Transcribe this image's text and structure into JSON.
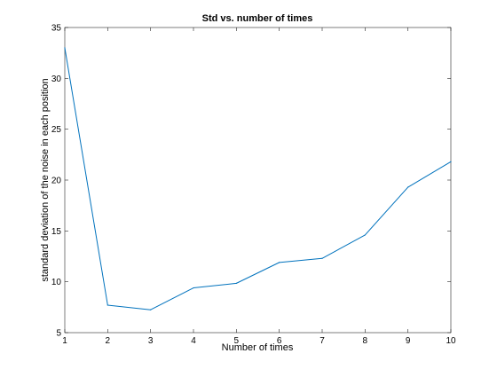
{
  "chart_data": {
    "type": "line",
    "title": "Std vs. number of times",
    "xlabel": "Number of times",
    "ylabel": "standard deviation of the noise in each position",
    "xlim": [
      1,
      10
    ],
    "ylim": [
      5,
      35
    ],
    "xticks": [
      1,
      2,
      3,
      4,
      5,
      6,
      7,
      8,
      9,
      10
    ],
    "yticks": [
      5,
      10,
      15,
      20,
      25,
      30,
      35
    ],
    "grid": false,
    "series": [
      {
        "color": "#0072bd",
        "x": [
          1,
          2,
          3,
          4,
          5,
          6,
          7,
          8,
          9,
          10
        ],
        "y": [
          33.0,
          7.7,
          7.25,
          9.4,
          9.85,
          11.9,
          12.3,
          14.6,
          19.3,
          21.8
        ]
      }
    ]
  }
}
